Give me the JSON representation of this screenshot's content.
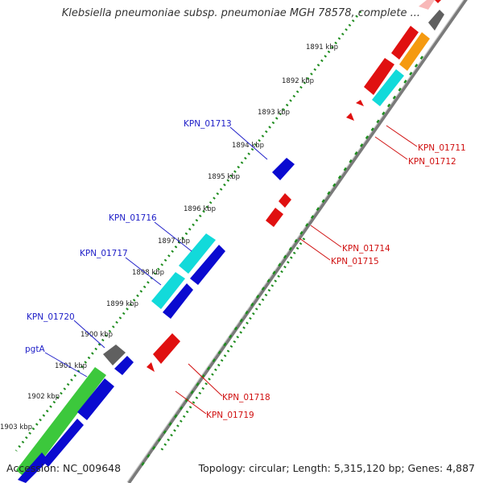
{
  "title": "Klebsiella pneumoniae subsp. pneumoniae MGH 78578, complete ...",
  "footer": {
    "accession": "Accession: NC_009648",
    "summary": "Topology: circular; Length: 5,315,120 bp; Genes: 4,887"
  },
  "colors": {
    "backbone": "#7a7a7a",
    "tick_dotted": "#1e8c1e",
    "tick_dashed": "#1e8c1e",
    "label_blue": "#2020c8",
    "label_red": "#d01010",
    "blue_gene": "#0a0ad0",
    "red_gene": "#e01010",
    "cyan_gene": "#12dada",
    "green_gene": "#3cc83c",
    "gray_gene": "#606060",
    "orange_gene": "#f59a10",
    "pink_gene": "#f8b8b8"
  },
  "kbp_labels": [
    "1891 kbp",
    "1892 kbp",
    "1893 kbp",
    "1894 kbp",
    "1895 kbp",
    "1896 kbp",
    "1897 kbp",
    "1898 kbp",
    "1899 kbp",
    "1900 kbp",
    "1901 kbp",
    "1902 kbp",
    "1903 kbp"
  ],
  "gene_labels": {
    "left": [
      "KPN_01713",
      "KPN_01716",
      "KPN_01717",
      "KPN_01720",
      "pgtA"
    ],
    "right": [
      "KPN_01711",
      "KPN_01712",
      "KPN_01714",
      "KPN_01715",
      "KPN_01718",
      "KPN_01719"
    ]
  }
}
